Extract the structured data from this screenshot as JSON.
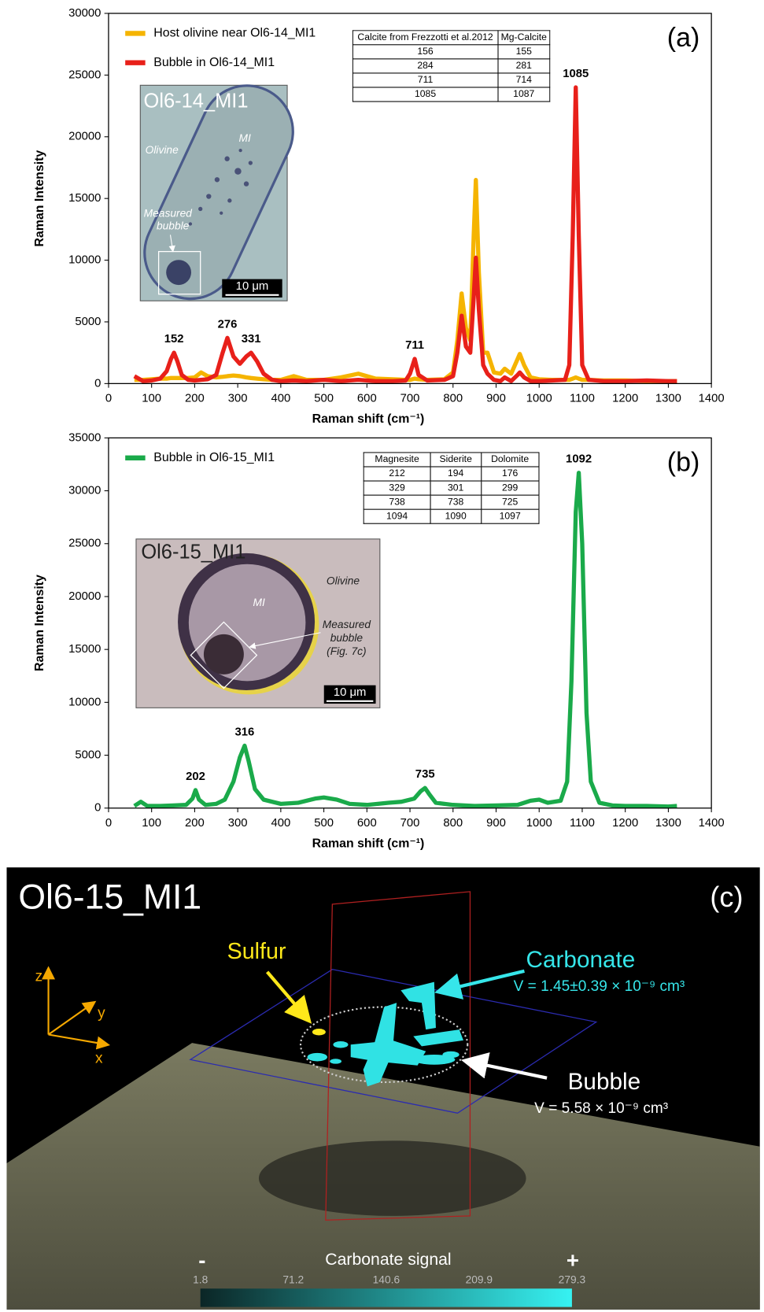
{
  "chart_data": [
    {
      "type": "line",
      "panel_label": "(a)",
      "x_label": "Raman shift (cm⁻¹)",
      "y_label": "Raman Intensity",
      "xlim": [
        0,
        1400
      ],
      "xticks": [
        0,
        100,
        200,
        300,
        400,
        500,
        600,
        700,
        800,
        900,
        1000,
        1100,
        1200,
        1300,
        1400
      ],
      "ylim": [
        0,
        30000
      ],
      "yticks": [
        0,
        5000,
        10000,
        15000,
        20000,
        25000,
        30000
      ],
      "legend": "upper left",
      "x": [
        60,
        80,
        100,
        120,
        135,
        145,
        152,
        160,
        170,
        185,
        200,
        215,
        230,
        250,
        265,
        276,
        290,
        305,
        320,
        331,
        345,
        360,
        380,
        400,
        430,
        460,
        500,
        540,
        580,
        620,
        660,
        690,
        700,
        711,
        720,
        740,
        780,
        800,
        810,
        820,
        830,
        840,
        848,
        853,
        860,
        870,
        880,
        895,
        910,
        920,
        935,
        950,
        955,
        965,
        980,
        1000,
        1030,
        1060,
        1070,
        1078,
        1085,
        1092,
        1100,
        1115,
        1150,
        1200,
        1250,
        1300,
        1320
      ],
      "series": [
        {
          "name": "Host olivine near Ol6-14_MI1",
          "color": "#f5b400",
          "values": [
            300,
            300,
            350,
            400,
            400,
            450,
            450,
            450,
            450,
            450,
            500,
            900,
            600,
            500,
            550,
            600,
            650,
            600,
            500,
            450,
            400,
            350,
            300,
            300,
            600,
            300,
            300,
            500,
            800,
            400,
            350,
            300,
            300,
            400,
            350,
            300,
            350,
            900,
            3500,
            7300,
            4500,
            3500,
            12000,
            16500,
            9000,
            2500,
            2500,
            900,
            800,
            1200,
            800,
            2000,
            2400,
            1500,
            500,
            350,
            300,
            300,
            300,
            400,
            500,
            400,
            300,
            300,
            250,
            250,
            200,
            200,
            200
          ]
        },
        {
          "name": "Bubble in Ol6-14_MI1",
          "color": "#e8201a",
          "values": [
            600,
            200,
            250,
            400,
            1000,
            2000,
            2500,
            1800,
            700,
            300,
            250,
            300,
            350,
            700,
            2500,
            3700,
            2200,
            1600,
            2200,
            2500,
            1800,
            800,
            300,
            200,
            250,
            200,
            300,
            200,
            300,
            200,
            200,
            250,
            800,
            2000,
            700,
            250,
            300,
            600,
            2500,
            5500,
            3000,
            2500,
            7000,
            10200,
            6000,
            1500,
            800,
            300,
            200,
            500,
            200,
            700,
            900,
            500,
            200,
            200,
            250,
            300,
            1500,
            12000,
            24000,
            12000,
            1500,
            300,
            200,
            200,
            250,
            200,
            200
          ]
        }
      ],
      "peak_labels": [
        152,
        276,
        331,
        711,
        1085
      ],
      "table": {
        "columns": [
          "Calcite from Frezzotti et al.2012",
          "Mg-Calcite"
        ],
        "rows": [
          [
            156,
            155
          ],
          [
            284,
            281
          ],
          [
            711,
            714
          ],
          [
            1085,
            1087
          ]
        ]
      },
      "inset": {
        "title": "Ol6-14_MI1",
        "host": "Olivine",
        "inclusion": "MI",
        "bubble": [
          "Measured",
          "bubble"
        ],
        "scale": "10 μm"
      }
    },
    {
      "type": "line",
      "panel_label": "(b)",
      "x_label": "Raman shift (cm⁻¹)",
      "y_label": "Raman Intensity",
      "xlim": [
        0,
        1400
      ],
      "xticks": [
        0,
        100,
        200,
        300,
        400,
        500,
        600,
        700,
        800,
        900,
        1000,
        1100,
        1200,
        1300,
        1400
      ],
      "ylim": [
        0,
        35000
      ],
      "yticks": [
        0,
        5000,
        10000,
        15000,
        20000,
        25000,
        30000,
        35000
      ],
      "legend": "upper left",
      "x": [
        60,
        75,
        90,
        120,
        150,
        180,
        195,
        202,
        210,
        225,
        250,
        270,
        290,
        305,
        316,
        325,
        340,
        360,
        400,
        440,
        480,
        500,
        530,
        560,
        600,
        650,
        680,
        710,
        725,
        735,
        745,
        760,
        800,
        850,
        900,
        950,
        980,
        1000,
        1020,
        1050,
        1065,
        1075,
        1085,
        1092,
        1100,
        1110,
        1120,
        1140,
        1170,
        1200,
        1250,
        1300,
        1320
      ],
      "series": [
        {
          "name": "Bubble in Ol6-15_MI1",
          "color": "#1aaa4a",
          "values": [
            200,
            600,
            200,
            200,
            250,
            300,
            900,
            1700,
            800,
            300,
            400,
            800,
            2500,
            4800,
            5900,
            4500,
            1800,
            800,
            400,
            500,
            900,
            1000,
            800,
            400,
            300,
            500,
            600,
            900,
            1600,
            1900,
            1300,
            500,
            300,
            200,
            250,
            300,
            700,
            800,
            500,
            700,
            2500,
            12000,
            28000,
            31700,
            25000,
            9000,
            2500,
            500,
            250,
            200,
            200,
            150,
            200
          ]
        }
      ],
      "peak_labels": [
        202,
        316,
        735,
        1092
      ],
      "table": {
        "columns": [
          "Magnesite",
          "Siderite",
          "Dolomite"
        ],
        "rows": [
          [
            212,
            194,
            176
          ],
          [
            329,
            301,
            299
          ],
          [
            738,
            738,
            725
          ],
          [
            1094,
            1090,
            1097
          ]
        ]
      },
      "inset": {
        "title": "Ol6-15_MI1",
        "host": "Olivine",
        "inclusion": "MI",
        "bubble": [
          "Measured",
          "bubble",
          "(Fig. 7c)"
        ],
        "scale": "10 μm"
      }
    }
  ],
  "panel_c": {
    "title": "Ol6-15_MI1",
    "panel_label": "(c)",
    "sulfur": "Sulfur",
    "carbonate": "Carbonate",
    "carbonate_volume": "V = 1.45±0.39 × 10⁻⁹ cm³",
    "bubble": "Bubble",
    "bubble_volume": "V = 5.58 × 10⁻⁹ cm³",
    "axes": [
      "z",
      "y",
      "x"
    ],
    "colorbar": {
      "label": "Carbonate signal",
      "min_label": "-",
      "max_label": "+",
      "ticks": [
        1.8,
        71.2,
        140.6,
        209.9,
        279.3
      ]
    }
  }
}
